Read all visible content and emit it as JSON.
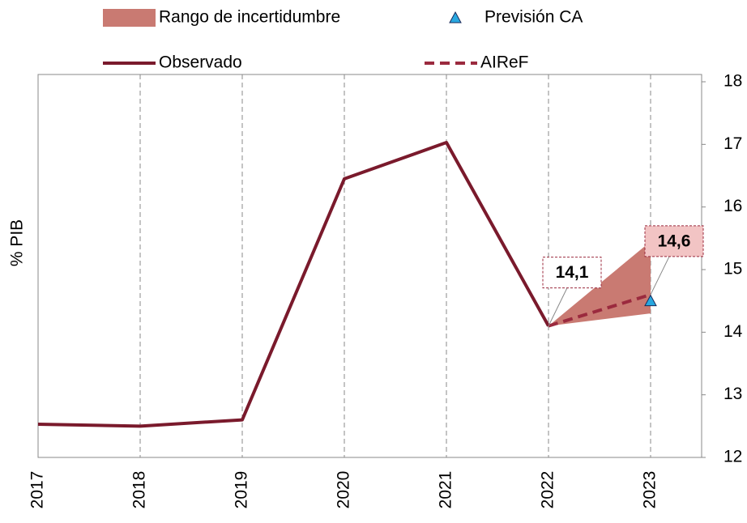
{
  "chart_data": {
    "type": "line",
    "y_axis_label": "% PIB",
    "categories": [
      "2017",
      "2018",
      "2019",
      "2020",
      "2021",
      "2022",
      "2023"
    ],
    "ylim": [
      12,
      18
    ],
    "yticks": [
      12,
      13,
      14,
      15,
      16,
      17,
      18
    ],
    "grid": true,
    "range": {
      "name": "Rango de incertidumbre",
      "color": "#c97a72",
      "lower": [
        null,
        null,
        null,
        null,
        null,
        14.1,
        14.3
      ],
      "upper": [
        null,
        null,
        null,
        null,
        null,
        14.1,
        15.45
      ]
    },
    "series": [
      {
        "name": "Observado",
        "color": "#7a1a2c",
        "style": "solid",
        "values": [
          12.53,
          12.5,
          12.6,
          16.45,
          17.03,
          14.1,
          null
        ]
      },
      {
        "name": "AIReF",
        "color": "#9b2a3e",
        "style": "dashed",
        "values": [
          null,
          null,
          null,
          null,
          null,
          14.1,
          14.6
        ],
        "value_labels": [
          null,
          null,
          null,
          null,
          null,
          "14,1",
          "14,6"
        ]
      },
      {
        "name": "Previsión CA",
        "color": "#29a8e0",
        "style": "marker",
        "values": [
          null,
          null,
          null,
          null,
          null,
          null,
          14.5
        ]
      }
    ]
  }
}
